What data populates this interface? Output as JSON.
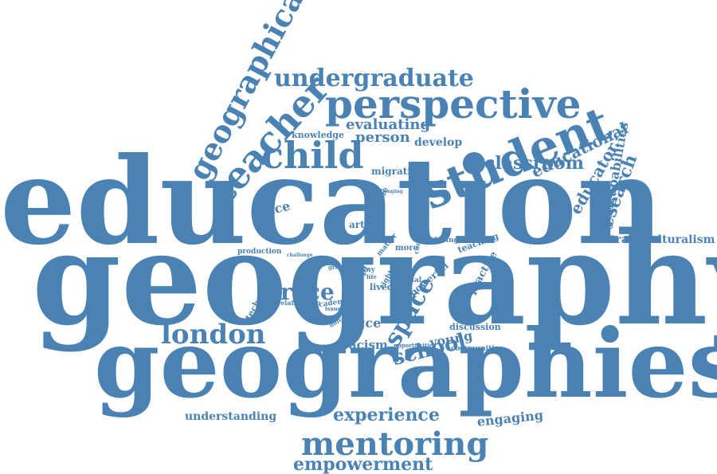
{
  "cloud": {
    "color": "#4a82b4",
    "background": "#ffffff",
    "words": [
      "education",
      "geography",
      "geographies",
      "student",
      "perspective",
      "child",
      "mentoring",
      "undergraduate",
      "teacher",
      "geographical",
      "london",
      "experience",
      "empowerment",
      "educational",
      "classroom",
      "educator",
      "research",
      "geocapabilities",
      "space",
      "school",
      "race",
      "evaluating",
      "person",
      "develop",
      "knowledge",
      "migration",
      "place",
      "racism",
      "transculturalism",
      "understanding",
      "engaging",
      "pgce",
      "young",
      "communities",
      "discussion",
      "practice",
      "article",
      "lived",
      "more",
      "social",
      "powerful",
      "teaching",
      "technology",
      "relationship",
      "academic",
      "university",
      "production",
      "discipline",
      "opportunities",
      "way",
      "exploring",
      "challenging",
      "conversation",
      "matter",
      "right",
      "concept",
      "life",
      "group",
      "issue",
      "challenge"
    ]
  }
}
